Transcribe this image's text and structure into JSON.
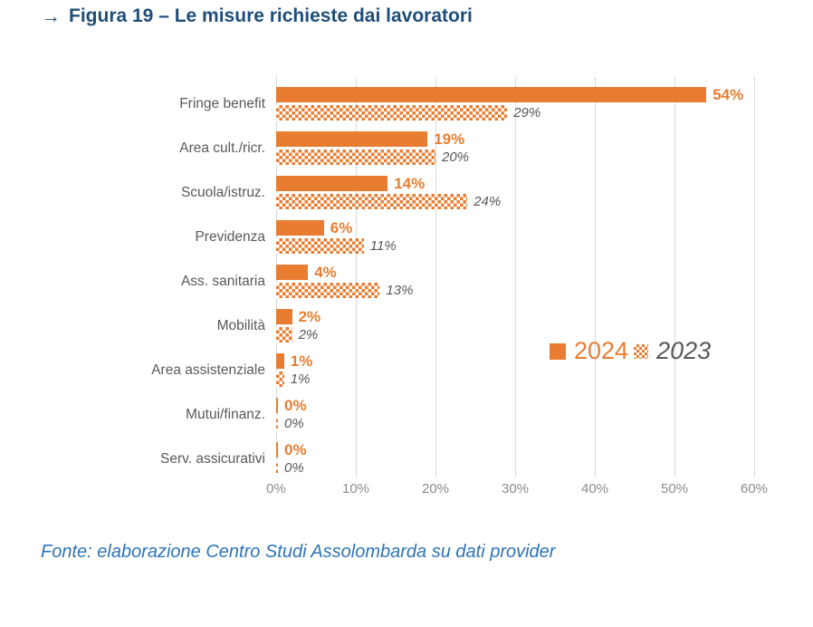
{
  "title": {
    "arrow": "→",
    "text": "Figura 19 – Le misure richieste dai lavoratori"
  },
  "source": {
    "text": "Fonte: elaborazione Centro Studi Assolombarda su dati provider"
  },
  "colors": {
    "bar_orange": "#E87D31",
    "title_blue": "#1F4E79",
    "source_blue": "#2E74B5",
    "gridline": "#D9D9D9",
    "category_label": "#595959",
    "axis_tick": "#8C8C8C",
    "background": "#FFFFFF"
  },
  "chart_data": {
    "type": "bar",
    "orientation": "horizontal",
    "title": "Le misure richieste dai lavoratori",
    "categories": [
      "Fringe benefit",
      "Area cult./ricr.",
      "Scuola/istruz.",
      "Previdenza",
      "Ass. sanitaria",
      "Mobilità",
      "Area assistenziale",
      "Mutui/finanz.",
      "Serv. assicurativi"
    ],
    "series": [
      {
        "name": "2024",
        "pattern": "solid",
        "values": [
          54,
          19,
          14,
          6,
          4,
          2,
          1,
          0,
          0
        ]
      },
      {
        "name": "2023",
        "pattern": "checker",
        "values": [
          29,
          20,
          24,
          11,
          13,
          2,
          1,
          0,
          0
        ]
      }
    ],
    "value_suffix": "%",
    "xlim": [
      0,
      60
    ],
    "x_ticks": [
      "0%",
      "10%",
      "20%",
      "30%",
      "40%",
      "50%",
      "60%"
    ],
    "grid": "vertical",
    "legend_position": "center-right",
    "legend_entries": [
      "2024",
      "2023"
    ]
  }
}
